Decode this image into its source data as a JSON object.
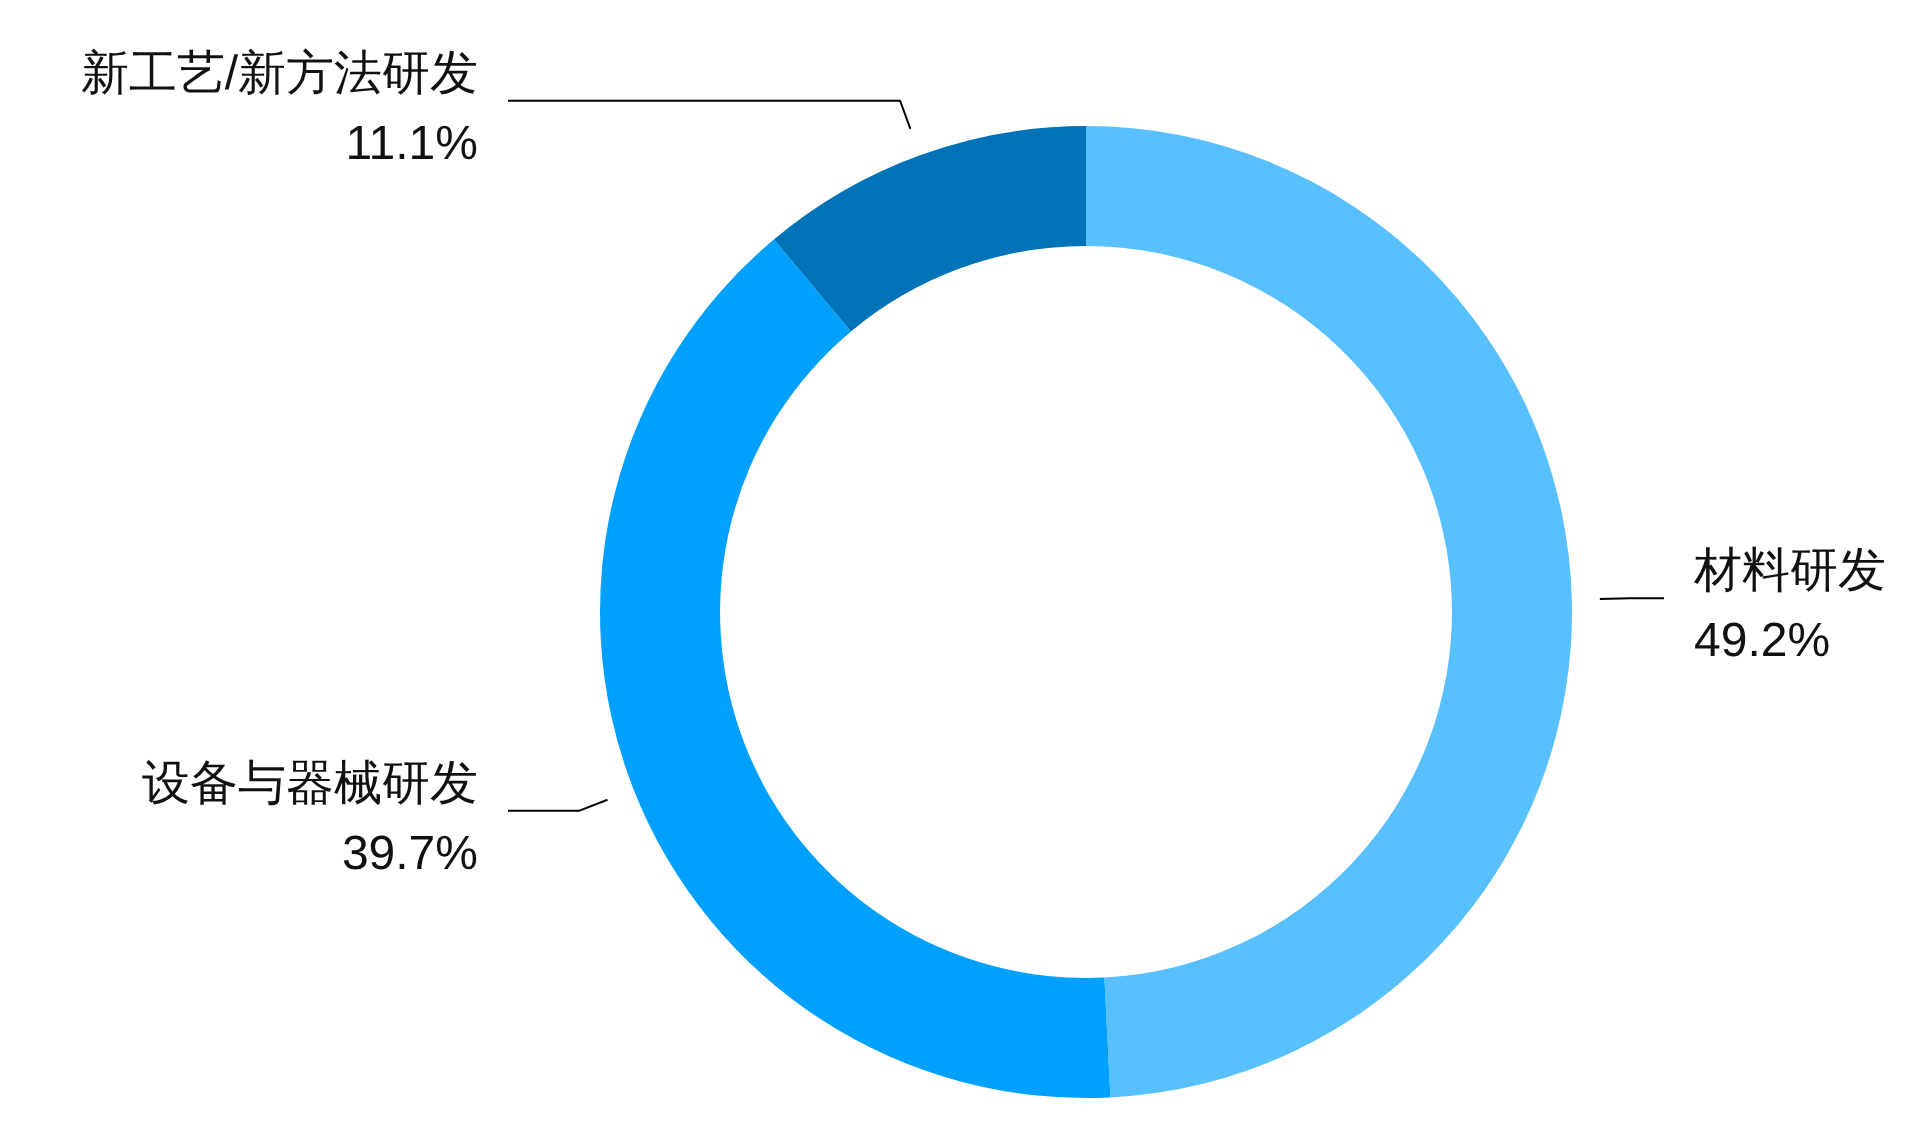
{
  "chart_data": {
    "type": "donut",
    "categories": [
      "材料研发",
      "设备与器械研发",
      "新工艺/新方法研发"
    ],
    "values": [
      49.2,
      39.7,
      11.1
    ],
    "colors": [
      "#59c0ff",
      "#00a0ff",
      "#0072b8"
    ],
    "value_labels": [
      "49.2%",
      "39.7%",
      "11.1%"
    ]
  }
}
